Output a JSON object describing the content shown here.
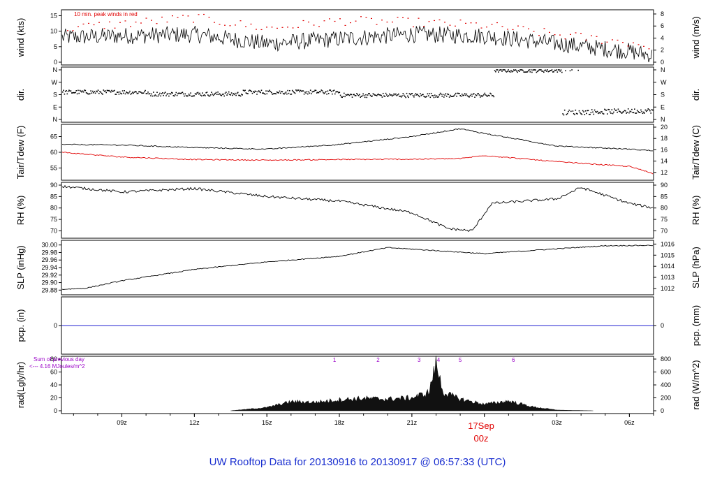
{
  "title": "UW Rooftop Data for 20130916  to  20130917 @ 06:57:33  (UTC)",
  "colors": {
    "title": "#1a2fd0",
    "peak": "#e00000",
    "dew": "#e00000",
    "pcp": "#2020d0",
    "annot": "#9a00c8",
    "day": "#e00000",
    "line": "#000000"
  },
  "x_ticks": [
    "09z",
    "12z",
    "15z",
    "18z",
    "21z",
    "03z",
    "06z"
  ],
  "day_label": {
    "date": "17Sep",
    "hour": "00z"
  },
  "chart_data": [
    {
      "type": "line",
      "name": "wind",
      "left_label": "wind (kts)",
      "right_label": "wind (m/s)",
      "ylim": [
        0,
        16
      ],
      "left_ticks": [
        "0",
        "5",
        "10",
        "15"
      ],
      "right_ticks": [
        "0",
        "2",
        "4",
        "6",
        "8"
      ],
      "annotation": "10 min. peak winds in red",
      "x_hours": [
        6.5,
        9,
        12,
        15,
        18,
        21,
        24,
        27,
        30,
        31
      ],
      "y": [
        8,
        8.5,
        9,
        6,
        7.5,
        9,
        8.5,
        6,
        3.5,
        2
      ],
      "peak_y": [
        11,
        12.5,
        14.5,
        11,
        13.5,
        13,
        12,
        9,
        6.5,
        5
      ]
    },
    {
      "type": "scatter",
      "name": "dir.",
      "left_label": "dir.",
      "right_label": "dir.",
      "left_ticks": [
        "N",
        "E",
        "S",
        "W",
        "N"
      ],
      "right_ticks": [
        "N",
        "E",
        "S",
        "W",
        "N"
      ],
      "x_hours": [
        6.5,
        10,
        14,
        18,
        22,
        24.3,
        24.5,
        27,
        28,
        31
      ],
      "y": [
        "SSW",
        "S",
        "SSW",
        "S",
        "S",
        "S",
        "N",
        "N",
        "ENE",
        "ENE"
      ]
    },
    {
      "type": "line",
      "name": "Tair/Tdew",
      "left_label": "Tair/Tdew (F)",
      "right_label": "Tair/Tdew (C)",
      "ylim": [
        52,
        68
      ],
      "left_ticks": [
        "55",
        "60",
        "65"
      ],
      "right_ticks": [
        "12",
        "14",
        "16",
        "18",
        "20"
      ],
      "x_hours": [
        6.5,
        9,
        12,
        15,
        18,
        21,
        23,
        24,
        27,
        30,
        31
      ],
      "tair": [
        62.5,
        62.3,
        61.5,
        61,
        62.5,
        65,
        67.5,
        66,
        62,
        61,
        60.5
      ],
      "tdew": [
        60,
        58.5,
        57.7,
        57.5,
        57.7,
        57.8,
        58,
        59,
        57,
        55.5,
        53.2
      ]
    },
    {
      "type": "line",
      "name": "RH",
      "left_label": "RH (%)",
      "right_label": "RH (%)",
      "ylim": [
        68,
        90
      ],
      "left_ticks": [
        "70",
        "75",
        "80",
        "85",
        "90"
      ],
      "right_ticks": [
        "70",
        "75",
        "80",
        "85",
        "90"
      ],
      "x_hours": [
        6.5,
        9,
        12,
        15,
        18,
        21,
        22.5,
        23.5,
        24.3,
        27,
        28,
        30,
        31
      ],
      "y": [
        89.5,
        87,
        88.5,
        85,
        83,
        78,
        71,
        70,
        82,
        84,
        89,
        82,
        80
      ]
    },
    {
      "type": "line",
      "name": "SLP",
      "left_label": "SLP (inHg)",
      "right_label": "SLP (hPa)",
      "ylim": [
        29.875,
        30.005
      ],
      "left_ticks": [
        "29.88",
        "29.90",
        "29.92",
        "29.94",
        "29.96",
        "29.98",
        "30.00"
      ],
      "right_ticks": [
        "1012",
        "1013",
        "1014",
        "1015",
        "1016"
      ],
      "x_hours": [
        6.5,
        7.5,
        9,
        12,
        15,
        18,
        20,
        22,
        24,
        27,
        29,
        31
      ],
      "y": [
        29.882,
        29.885,
        29.905,
        29.935,
        29.955,
        29.97,
        29.993,
        29.985,
        29.977,
        29.99,
        29.998,
        29.999
      ]
    },
    {
      "type": "line",
      "name": "pcp.",
      "left_label": "pcp. (in)",
      "right_label": "pcp. (mm)",
      "left_ticks": [
        "0"
      ],
      "right_ticks": [
        "0"
      ],
      "x_hours": [
        6.5,
        31
      ],
      "y": [
        0,
        0
      ]
    },
    {
      "type": "area",
      "name": "rad",
      "left_label": "rad(Lgly/hr)",
      "right_label": "rad (W/m^2)",
      "ylim": [
        0,
        80
      ],
      "left_ticks": [
        "0",
        "20",
        "40",
        "60",
        "80"
      ],
      "right_ticks": [
        "0",
        "200",
        "400",
        "600",
        "800"
      ],
      "annotation_lines": [
        "Sum of previous day",
        "<--- 4.16 MJoules/m^2"
      ],
      "hour_marks": [
        "1",
        "2",
        "3",
        "4",
        "5",
        "6"
      ],
      "x_hours": [
        13.5,
        15,
        16,
        17,
        18,
        19,
        20,
        21,
        21.7,
        22,
        22.3,
        23,
        24,
        25,
        26,
        27,
        28.5
      ],
      "y": [
        0,
        5,
        14,
        13,
        17,
        19,
        18,
        20,
        28,
        72,
        28,
        18,
        10,
        15,
        6,
        1,
        0
      ]
    }
  ]
}
